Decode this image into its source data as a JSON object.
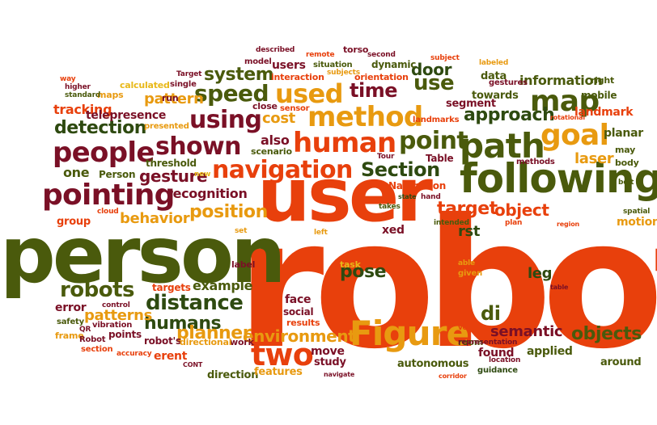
{
  "colors": {
    "orange_red": "#e8400c",
    "olive": "#4a5a0c",
    "maroon": "#7a1026",
    "amber": "#e89a10",
    "dark_green": "#2e4a10",
    "gold": "#e8b818"
  },
  "words": [
    {
      "text": "robot",
      "color": "orange_red"
    },
    {
      "text": "person",
      "color": "olive"
    },
    {
      "text": "user",
      "color": "orange_red"
    },
    {
      "text": "following",
      "color": "olive"
    },
    {
      "text": "Figure",
      "color": "amber"
    },
    {
      "text": "path",
      "color": "olive"
    },
    {
      "text": "human",
      "color": "orange_red"
    },
    {
      "text": "method",
      "color": "amber"
    },
    {
      "text": "people",
      "color": "maroon"
    },
    {
      "text": "navigation",
      "color": "orange_red"
    },
    {
      "text": "pointing",
      "color": "maroon"
    },
    {
      "text": "goal",
      "color": "amber"
    },
    {
      "text": "map",
      "color": "olive"
    },
    {
      "text": "used",
      "color": "amber"
    },
    {
      "text": "time",
      "color": "maroon"
    },
    {
      "text": "use",
      "color": "olive"
    },
    {
      "text": "shown",
      "color": "maroon"
    },
    {
      "text": "using",
      "color": "maroon"
    },
    {
      "text": "speed",
      "color": "olive"
    },
    {
      "text": "Section",
      "color": "dark_green"
    },
    {
      "text": "position",
      "color": "amber"
    },
    {
      "text": "distance",
      "color": "dark_green"
    },
    {
      "text": "two",
      "color": "orange_red"
    },
    {
      "text": "target",
      "color": "orange_red"
    },
    {
      "text": "object",
      "color": "orange_red"
    },
    {
      "text": "point",
      "color": "olive"
    },
    {
      "text": "approach",
      "color": "dark_green"
    },
    {
      "text": "detection",
      "color": "dark_green"
    },
    {
      "text": "robots",
      "color": "olive"
    },
    {
      "text": "humans",
      "color": "dark_green"
    },
    {
      "text": "environment",
      "color": "amber"
    },
    {
      "text": "objects",
      "color": "olive"
    },
    {
      "text": "planner",
      "color": "amber"
    },
    {
      "text": "pose",
      "color": "dark_green"
    },
    {
      "text": "di",
      "color": "olive"
    },
    {
      "text": "system",
      "color": "olive"
    },
    {
      "text": "door",
      "color": "dark_green"
    },
    {
      "text": "leg",
      "color": "dark_green"
    },
    {
      "text": "semantic",
      "color": "maroon"
    },
    {
      "text": "laser",
      "color": "amber"
    },
    {
      "text": "cost",
      "color": "amber"
    },
    {
      "text": "gesture",
      "color": "maroon"
    },
    {
      "text": "recognition",
      "color": "maroon"
    },
    {
      "text": "behavior",
      "color": "amber"
    },
    {
      "text": "patterns",
      "color": "amber"
    },
    {
      "text": "example",
      "color": "olive"
    },
    {
      "text": "information",
      "color": "olive"
    },
    {
      "text": "landmark",
      "color": "orange_red"
    },
    {
      "text": "also",
      "color": "maroon"
    },
    {
      "text": "rst",
      "color": "dark_green"
    },
    {
      "text": "motion",
      "color": "amber"
    },
    {
      "text": "tracking",
      "color": "orange_red"
    },
    {
      "text": "pattern",
      "color": "amber"
    },
    {
      "text": "one",
      "color": "olive"
    },
    {
      "text": "Person",
      "color": "olive"
    },
    {
      "text": "error",
      "color": "maroon"
    },
    {
      "text": "face",
      "color": "maroon"
    },
    {
      "text": "planar",
      "color": "olive"
    },
    {
      "text": "applied",
      "color": "olive"
    },
    {
      "text": "found",
      "color": "maroon"
    },
    {
      "text": "move",
      "color": "maroon"
    },
    {
      "text": "direction",
      "color": "olive"
    },
    {
      "text": "telepresence",
      "color": "maroon"
    },
    {
      "text": "group",
      "color": "orange_red"
    },
    {
      "text": "users",
      "color": "maroon"
    },
    {
      "text": "data",
      "color": "olive"
    },
    {
      "text": "segment",
      "color": "maroon"
    },
    {
      "text": "towards",
      "color": "olive"
    },
    {
      "text": "erent",
      "color": "orange_red"
    },
    {
      "text": "points",
      "color": "maroon"
    },
    {
      "text": "Navigation",
      "color": "orange_red"
    },
    {
      "text": "Table",
      "color": "maroon"
    },
    {
      "text": "features",
      "color": "amber"
    },
    {
      "text": "social",
      "color": "maroon"
    },
    {
      "text": "around",
      "color": "olive"
    },
    {
      "text": "study",
      "color": "maroon"
    },
    {
      "text": "autonomous",
      "color": "olive"
    },
    {
      "text": "xed",
      "color": "maroon"
    },
    {
      "text": "threshold",
      "color": "olive"
    },
    {
      "text": "dynamic",
      "color": "olive"
    },
    {
      "text": "model",
      "color": "maroon"
    },
    {
      "text": "interaction",
      "color": "orange_red"
    },
    {
      "text": "orientation",
      "color": "orange_red"
    },
    {
      "text": "mobile",
      "color": "olive"
    },
    {
      "text": "right",
      "color": "olive"
    },
    {
      "text": "work",
      "color": "maroon"
    },
    {
      "text": "room",
      "color": "olive"
    },
    {
      "text": "label",
      "color": "maroon"
    },
    {
      "text": "targets",
      "color": "orange_red"
    },
    {
      "text": "robot's",
      "color": "maroon"
    },
    {
      "text": "directional",
      "color": "amber"
    },
    {
      "text": "results",
      "color": "orange_red"
    },
    {
      "text": "guidance",
      "color": "dark_green"
    },
    {
      "text": "scenario",
      "color": "olive"
    },
    {
      "text": "close",
      "color": "maroon"
    },
    {
      "text": "maps",
      "color": "amber"
    },
    {
      "text": "calculated",
      "color": "gold"
    },
    {
      "text": "run",
      "color": "maroon"
    },
    {
      "text": "may",
      "color": "olive"
    },
    {
      "text": "body",
      "color": "olive"
    },
    {
      "text": "methods",
      "color": "maroon"
    },
    {
      "text": "landmarks",
      "color": "orange_red"
    },
    {
      "text": "sensor",
      "color": "orange_red"
    },
    {
      "text": "presented",
      "color": "amber"
    },
    {
      "text": "situation",
      "color": "olive"
    },
    {
      "text": "torso",
      "color": "maroon"
    },
    {
      "text": "second",
      "color": "maroon"
    },
    {
      "text": "described",
      "color": "maroon"
    },
    {
      "text": "remote",
      "color": "orange_red"
    },
    {
      "text": "subjects",
      "color": "amber"
    },
    {
      "text": "subject",
      "color": "orange_red"
    },
    {
      "text": "labeled",
      "color": "amber"
    },
    {
      "text": "gestures",
      "color": "maroon"
    },
    {
      "text": "rotational",
      "color": "orange_red"
    },
    {
      "text": "Target",
      "color": "maroon"
    },
    {
      "text": "single",
      "color": "maroon"
    },
    {
      "text": "standard",
      "color": "olive"
    },
    {
      "text": "higher",
      "color": "maroon"
    },
    {
      "text": "way",
      "color": "orange_red"
    },
    {
      "text": "new",
      "color": "gold"
    },
    {
      "text": "cloud",
      "color": "orange_red"
    },
    {
      "text": "set",
      "color": "amber"
    },
    {
      "text": "Tour",
      "color": "maroon"
    },
    {
      "text": "state",
      "color": "dark_green"
    },
    {
      "text": "hand",
      "color": "maroon"
    },
    {
      "text": "takes",
      "color": "olive"
    },
    {
      "text": "intended",
      "color": "olive"
    },
    {
      "text": "plan",
      "color": "orange_red"
    },
    {
      "text": "region",
      "color": "orange_red"
    },
    {
      "text": "belt",
      "color": "olive"
    },
    {
      "text": "spatial",
      "color": "olive"
    },
    {
      "text": "left",
      "color": "amber"
    },
    {
      "text": "task",
      "color": "gold"
    },
    {
      "text": "able",
      "color": "amber"
    },
    {
      "text": "given",
      "color": "amber"
    },
    {
      "text": "table",
      "color": "maroon"
    },
    {
      "text": "control",
      "color": "maroon"
    },
    {
      "text": "vibration",
      "color": "maroon"
    },
    {
      "text": "safety",
      "color": "olive"
    },
    {
      "text": "QR",
      "color": "maroon"
    },
    {
      "text": "frame",
      "color": "amber"
    },
    {
      "text": "Robot",
      "color": "maroon"
    },
    {
      "text": "section",
      "color": "orange_red"
    },
    {
      "text": "accuracy",
      "color": "orange_red"
    },
    {
      "text": "CONT",
      "color": "maroon"
    },
    {
      "text": "velocity",
      "color": "orange_red"
    },
    {
      "text": "representation",
      "color": "maroon"
    },
    {
      "text": "location",
      "color": "maroon"
    },
    {
      "text": "navigate",
      "color": "maroon"
    },
    {
      "text": "corridor",
      "color": "orange_red"
    }
  ]
}
